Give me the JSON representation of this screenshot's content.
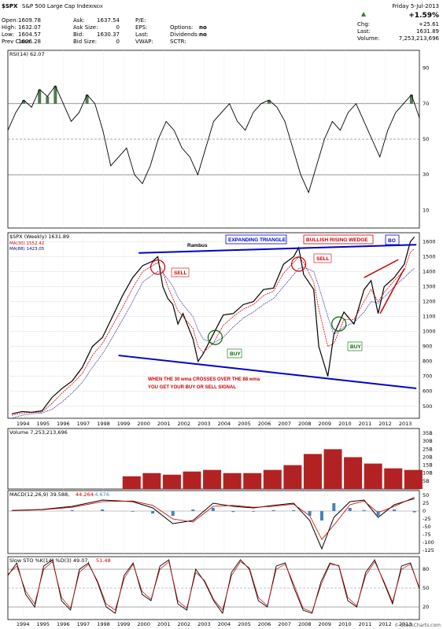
{
  "header": {
    "symbol": "$SPX",
    "name": "S&P 500 Large Cap Index",
    "exchange": "INDX",
    "rows": [
      {
        "label": "Open:",
        "value": "1609.78",
        "label2": "Ask:",
        "value2": "1637.54",
        "label3": "P/E:",
        "value3": ""
      },
      {
        "label": "High:",
        "value": "1632.07",
        "label2": "Ask Size:",
        "value2": "0",
        "label3": "EPS:",
        "value3": "",
        "label4": "Options:",
        "value4": "no"
      },
      {
        "label": "Low:",
        "value": "1604.57",
        "label2": "Bid:",
        "value2": "1630.37",
        "label3": "Last:",
        "value3": "",
        "label4": "Dividends:",
        "value4": "no"
      },
      {
        "label": "Prev Close:",
        "value": "1606.28",
        "label2": "Bid Size:",
        "value2": "0",
        "label3": "VWAP:",
        "value3": "",
        "label4": "SCTR:",
        "value4": ""
      }
    ],
    "date": "Friday 5-Jul-2013",
    "pct_change": "+1.59%",
    "chg_label": "Chg:",
    "chg_value": "+25.61",
    "last_label": "Last:",
    "last_value": "1631.89",
    "volume_label": "Volume:",
    "volume_value": "7,253,213,696",
    "watermark": "© StockCharts.com"
  },
  "colors": {
    "price": "#000000",
    "ma30": "#cc0000",
    "ma88": "#00008b",
    "annotation_blue": "#0000cc",
    "annotation_red": "#cc0000",
    "buy_green": "#006600",
    "rsi_fill": "#4e7a4e",
    "volume_bar": "#b22222",
    "macd_hist": "#4682b4"
  },
  "chart_data": [
    {
      "type": "line",
      "title": "RSI(14) 62.07",
      "y_ticks": [
        10,
        30,
        50,
        70,
        90
      ],
      "ylim": [
        0,
        100
      ],
      "reference_lines": [
        30,
        50,
        70
      ],
      "series": [
        {
          "values": [
            55,
            65,
            72,
            68,
            78,
            74,
            80,
            70,
            60,
            65,
            75,
            70,
            55,
            35,
            40,
            45,
            30,
            25,
            35,
            50,
            60,
            55,
            45,
            40,
            30,
            45,
            60,
            65,
            70,
            60,
            55,
            65,
            70,
            72,
            68,
            60,
            45,
            30,
            20,
            35,
            50,
            60,
            55,
            65,
            70,
            60,
            50,
            40,
            55,
            65,
            70,
            75,
            62
          ]
        }
      ]
    },
    {
      "type": "line",
      "title": "$SPX (Weekly) 1631.89",
      "legend": [
        "$SPX (Weekly) 1631.89",
        "MA(30) 1552.42",
        "MA(88) 1423.05"
      ],
      "x_ticks": [
        "1994",
        "1995",
        "1996",
        "1997",
        "1998",
        "1999",
        "2000",
        "2001",
        "2002",
        "2003",
        "2004",
        "2005",
        "2006",
        "2007",
        "2008",
        "2009",
        "2010",
        "2011",
        "2012",
        "2013"
      ],
      "y_ticks": [
        500,
        600,
        700,
        800,
        900,
        1000,
        1100,
        1200,
        1300,
        1400,
        1500,
        1600
      ],
      "ylim": [
        420,
        1660
      ],
      "x_years": [
        1993.5,
        1994,
        1994.5,
        1995,
        1995.5,
        1996,
        1996.5,
        1997,
        1997.5,
        1998,
        1998.5,
        1999,
        1999.5,
        2000,
        2000.5,
        2000.75,
        2001,
        2001.25,
        2001.5,
        2001.75,
        2002,
        2002.5,
        2002.75,
        2003,
        2003.5,
        2004,
        2004.5,
        2005,
        2005.5,
        2006,
        2006.5,
        2007,
        2007.5,
        2007.75,
        2008,
        2008.5,
        2008.75,
        2009.2,
        2009.5,
        2010,
        2010.5,
        2011,
        2011.35,
        2011.7,
        2012,
        2012.5,
        2013,
        2013.3,
        2013.5
      ],
      "series": [
        {
          "name": "$SPX (Weekly)",
          "values": [
            450,
            465,
            460,
            470,
            560,
            620,
            670,
            760,
            900,
            960,
            1100,
            1240,
            1360,
            1440,
            1470,
            1500,
            1300,
            1220,
            1180,
            1050,
            1120,
            950,
            800,
            850,
            980,
            1110,
            1120,
            1180,
            1200,
            1280,
            1290,
            1450,
            1500,
            1560,
            1380,
            1280,
            900,
            700,
            980,
            1130,
            1050,
            1280,
            1340,
            1120,
            1300,
            1360,
            1450,
            1600,
            1632
          ]
        },
        {
          "name": "MA(30)",
          "values": [
            440,
            455,
            458,
            462,
            520,
            590,
            650,
            720,
            840,
            920,
            1040,
            1160,
            1290,
            1400,
            1440,
            1460,
            1400,
            1300,
            1220,
            1140,
            1100,
            1020,
            900,
            860,
            920,
            1040,
            1100,
            1150,
            1180,
            1240,
            1270,
            1390,
            1460,
            1500,
            1460,
            1330,
            1150,
            900,
            920,
            1080,
            1080,
            1200,
            1280,
            1200,
            1260,
            1340,
            1410,
            1530,
            1552
          ]
        },
        {
          "name": "MA(88)",
          "values": [
            420,
            440,
            450,
            455,
            480,
            530,
            590,
            660,
            760,
            850,
            960,
            1080,
            1200,
            1330,
            1380,
            1400,
            1390,
            1350,
            1300,
            1230,
            1180,
            1100,
            1010,
            950,
            920,
            960,
            1030,
            1090,
            1130,
            1180,
            1220,
            1300,
            1380,
            1420,
            1430,
            1400,
            1300,
            1100,
            980,
            1030,
            1060,
            1130,
            1200,
            1190,
            1230,
            1300,
            1360,
            1400,
            1423
          ]
        }
      ],
      "annotations": [
        "Rambus",
        "EXPANDING TRIANGLE",
        "BULLISH RISING WEDGE",
        "BO",
        "SELL",
        "BUY",
        "WHEN THE 30 wma CROSSES OVER THE 88 wma",
        "YOU GET YOUR BUY OR SELL SIGNAL"
      ],
      "trendlines": [
        {
          "from": [
            1999.8,
            1525
          ],
          "to": [
            2013.6,
            1580
          ]
        },
        {
          "from": [
            1998.8,
            840
          ],
          "to": [
            2013.6,
            620
          ]
        }
      ]
    },
    {
      "type": "bar",
      "title": "Volume 7,253,213,696",
      "y_tick_labels": [
        "5B",
        "10B",
        "15B",
        "20B",
        "25B",
        "30B",
        "35B"
      ],
      "y_ticks": [
        5,
        10,
        15,
        20,
        25,
        30,
        35
      ],
      "ylim": [
        0,
        38
      ],
      "x_years": [
        1999,
        2000,
        2001,
        2002,
        2003,
        2004,
        2005,
        2006,
        2007,
        2008,
        2009,
        2010,
        2011,
        2012,
        2013
      ],
      "values": [
        8,
        10,
        9,
        11,
        12,
        10,
        10,
        12,
        15,
        22,
        25,
        20,
        16,
        13,
        12
      ]
    },
    {
      "type": "line",
      "title": "MACD(12,26,9) 39.588,",
      "title_parts": [
        "44.264",
        "-4.676"
      ],
      "y_ticks": [
        -125,
        -100,
        -75,
        -50,
        -25,
        0,
        25,
        50
      ],
      "ylim": [
        -135,
        65
      ],
      "x_years": [
        1993.5,
        1995,
        1996.5,
        1998,
        1999.5,
        2000.5,
        2001.5,
        2002.5,
        2003.5,
        2004.5,
        2005.5,
        2006.5,
        2007.5,
        2008.3,
        2008.9,
        2009.5,
        2010.3,
        2011,
        2011.7,
        2012.5,
        2013.5
      ],
      "series": [
        {
          "name": "MACD",
          "values": [
            2,
            5,
            15,
            35,
            30,
            10,
            -40,
            -30,
            25,
            15,
            10,
            18,
            25,
            -30,
            -120,
            -20,
            30,
            35,
            -20,
            20,
            40
          ]
        },
        {
          "name": "Signal",
          "values": [
            1,
            4,
            12,
            30,
            32,
            18,
            -25,
            -35,
            15,
            18,
            12,
            15,
            22,
            -15,
            -90,
            -45,
            20,
            32,
            -5,
            15,
            44
          ]
        }
      ]
    },
    {
      "type": "line",
      "title": "Slow STO %K(14) %D(3) 49.07,",
      "title_d_value": "51.48",
      "y_ticks": [
        20,
        50,
        80
      ],
      "ylim": [
        0,
        100
      ],
      "series": [
        {
          "name": "%K",
          "values": [
            70,
            90,
            40,
            20,
            85,
            95,
            30,
            15,
            80,
            90,
            60,
            20,
            10,
            70,
            90,
            40,
            30,
            85,
            95,
            25,
            15,
            80,
            60,
            30,
            10,
            75,
            95,
            80,
            30,
            20,
            85,
            90,
            50,
            15,
            10,
            60,
            90,
            85,
            30,
            20,
            75,
            95,
            60,
            25,
            85,
            90,
            49
          ]
        },
        {
          "name": "%D",
          "values": [
            72,
            85,
            45,
            25,
            80,
            92,
            35,
            18,
            75,
            88,
            62,
            25,
            15,
            65,
            88,
            45,
            32,
            80,
            92,
            30,
            18,
            75,
            62,
            32,
            15,
            70,
            92,
            82,
            35,
            22,
            80,
            88,
            55,
            18,
            12,
            55,
            88,
            86,
            35,
            22,
            70,
            92,
            62,
            28,
            80,
            88,
            51
          ]
        }
      ]
    }
  ]
}
